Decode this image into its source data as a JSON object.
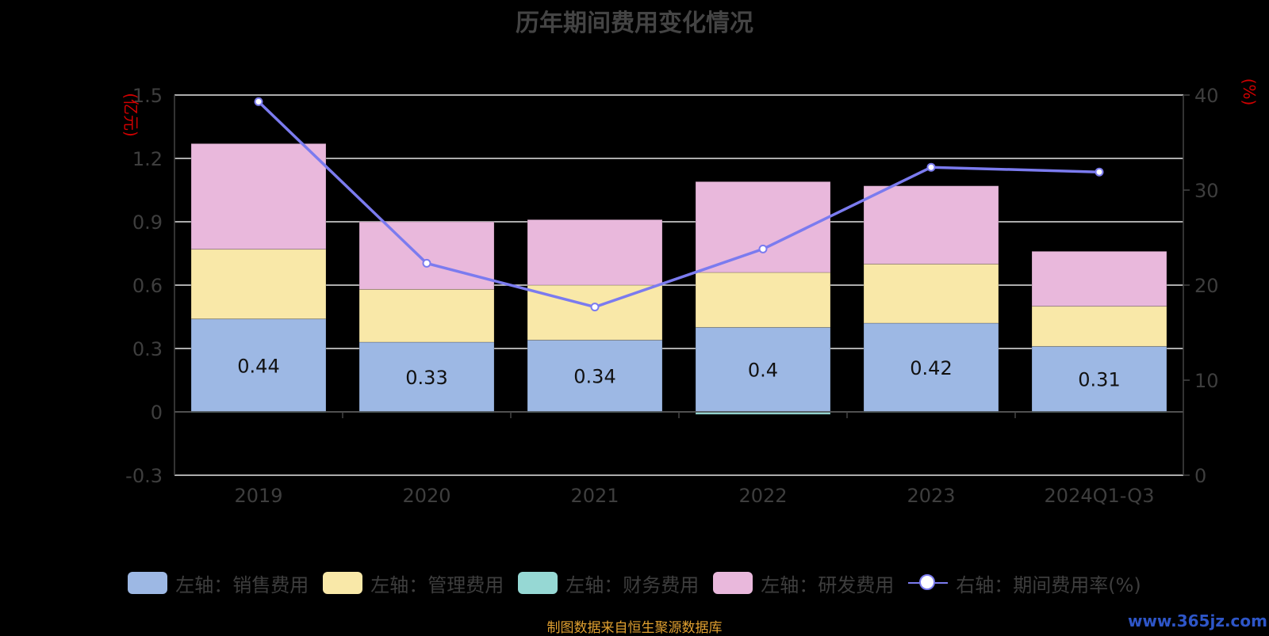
{
  "title": "历年期间费用变化情况",
  "source_note": "制图数据来自恒生聚源数据库",
  "watermark": "www.365jz.com",
  "chart_data": {
    "type": "bar",
    "stacked": true,
    "categories": [
      "2019",
      "2020",
      "2021",
      "2022",
      "2023",
      "2024Q1-Q3"
    ],
    "left_axis": {
      "unit_label": "(亿元)",
      "ticks": [
        "1.5",
        "1.2",
        "0.9",
        "0.6",
        "0.3",
        "0",
        "-0.3"
      ],
      "ylim": [
        -0.3,
        1.5
      ]
    },
    "right_axis": {
      "unit_label": "(%)",
      "ticks": [
        "40",
        "30",
        "20",
        "10",
        "0"
      ],
      "ylim": [
        0,
        40
      ]
    },
    "grid": true,
    "legend_position": "bottom",
    "series": [
      {
        "name": "左轴：销售费用",
        "axis": "left",
        "kind": "bar",
        "color": "#9db8e4",
        "values": [
          0.44,
          0.33,
          0.34,
          0.4,
          0.42,
          0.31
        ],
        "labels": [
          "0.44",
          "0.33",
          "0.34",
          "0.4",
          "0.42",
          "0.31"
        ]
      },
      {
        "name": "左轴：管理费用",
        "axis": "left",
        "kind": "bar",
        "color": "#f9e8a8",
        "values": [
          0.33,
          0.25,
          0.26,
          0.26,
          0.28,
          0.19
        ]
      },
      {
        "name": "左轴：财务费用",
        "axis": "left",
        "kind": "bar",
        "color": "#96d8d4",
        "values": [
          -0.003,
          -0.003,
          -0.003,
          -0.012,
          -0.002,
          -0.002
        ]
      },
      {
        "name": "左轴：研发费用",
        "axis": "left",
        "kind": "bar",
        "color": "#e9b8dc",
        "values": [
          0.5,
          0.32,
          0.31,
          0.43,
          0.37,
          0.26
        ]
      },
      {
        "name": "右轴：期间费用率(%)",
        "axis": "right",
        "kind": "line",
        "color": "#7b7bef",
        "values": [
          39.3,
          22.3,
          17.7,
          23.8,
          32.4,
          31.9
        ]
      }
    ]
  }
}
